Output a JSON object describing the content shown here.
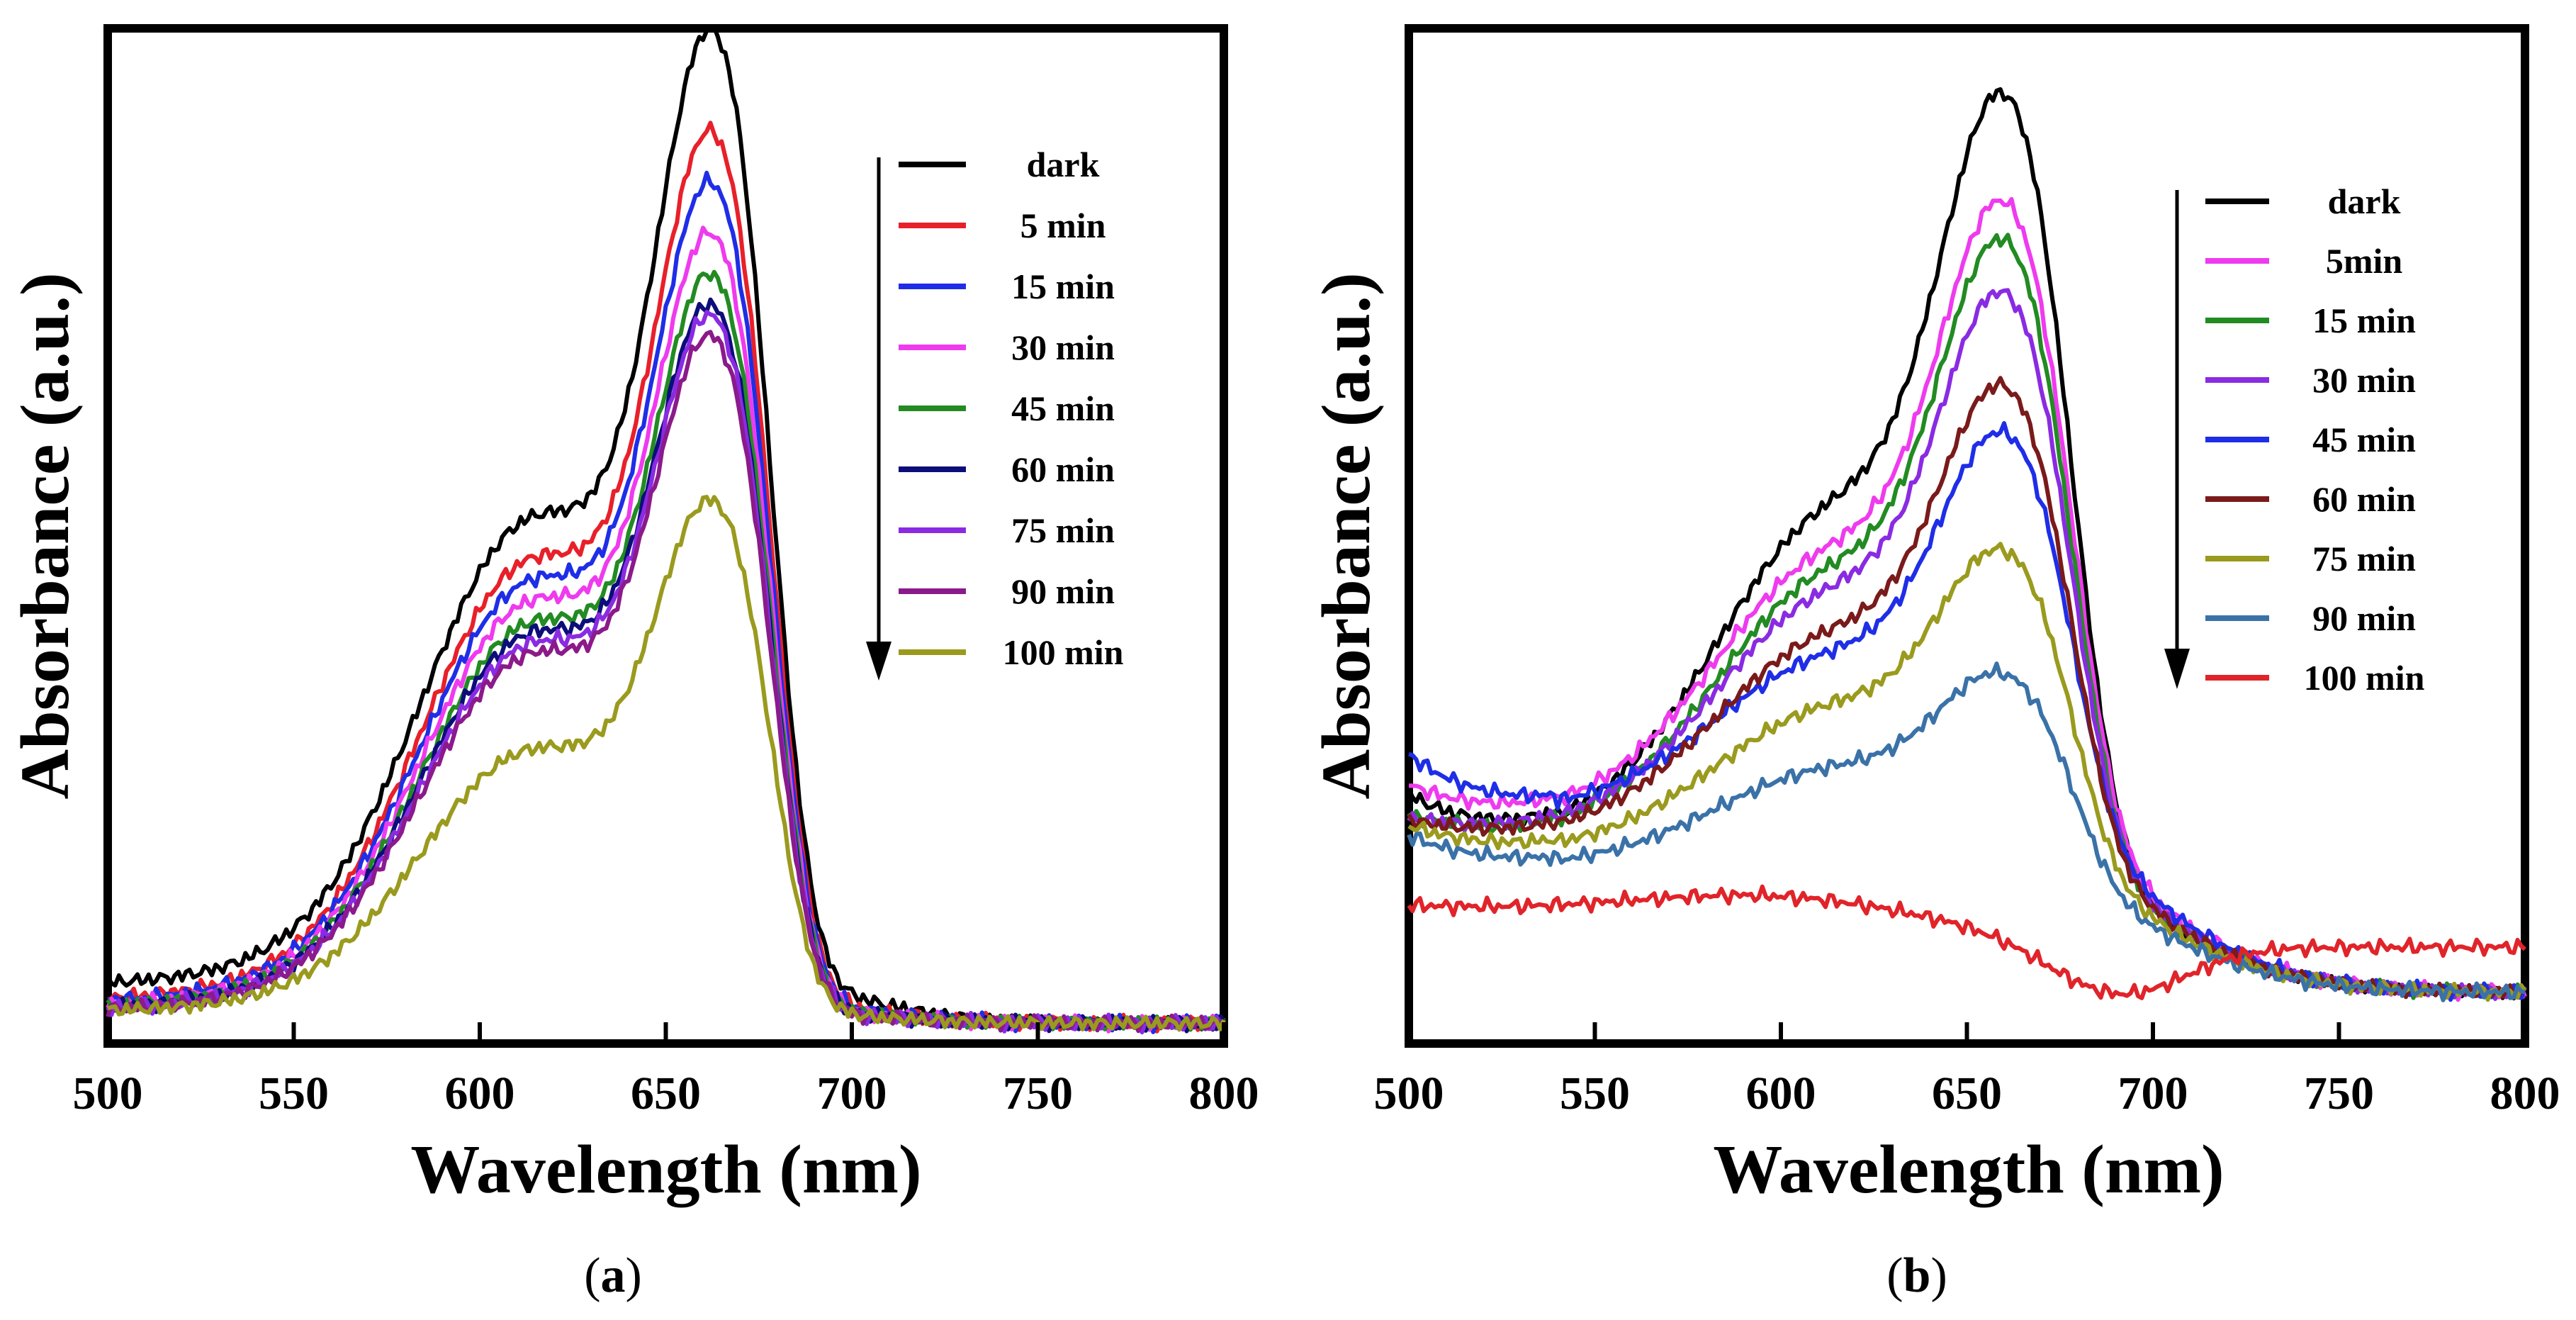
{
  "figure": {
    "panels": [
      {
        "caption_open": "(",
        "caption_letter": "a",
        "caption_close": ")"
      },
      {
        "caption_open": "(",
        "caption_letter": "b",
        "caption_close": ")"
      }
    ]
  },
  "chart_data": [
    {
      "type": "line",
      "title": "",
      "xlabel": "Wavelength (nm)",
      "ylabel": "Absorbance (a.u.)",
      "xlim": [
        500,
        800
      ],
      "ylim": [
        0,
        1.0
      ],
      "xticks": [
        "500",
        "550",
        "600",
        "650",
        "700",
        "750",
        "800"
      ],
      "legend_position": "top-right",
      "legend_arrow": "down",
      "series": [
        {
          "name": "dark",
          "color": "#000000",
          "base": 0.055,
          "tail": 0.02,
          "peak": 0.99,
          "sh": 0.5,
          "s560": 0.11
        },
        {
          "name": "5 min",
          "color": "#e8202a",
          "base": 0.04,
          "tail": 0.02,
          "peak": 0.89,
          "sh": 0.46,
          "s560": 0.095
        },
        {
          "name": "15 min",
          "color": "#1f2ee6",
          "base": 0.038,
          "tail": 0.02,
          "peak": 0.84,
          "sh": 0.44,
          "s560": 0.09
        },
        {
          "name": "30 min",
          "color": "#ee3bee",
          "base": 0.034,
          "tail": 0.02,
          "peak": 0.79,
          "sh": 0.42,
          "s560": 0.085
        },
        {
          "name": "45 min",
          "color": "#228b22",
          "base": 0.033,
          "tail": 0.02,
          "peak": 0.75,
          "sh": 0.4,
          "s560": 0.08
        },
        {
          "name": "60 min",
          "color": "#0d0d7a",
          "base": 0.032,
          "tail": 0.02,
          "peak": 0.72,
          "sh": 0.39,
          "s560": 0.078
        },
        {
          "name": "75 min",
          "color": "#8a2be2",
          "base": 0.031,
          "tail": 0.02,
          "peak": 0.71,
          "sh": 0.38,
          "s560": 0.076
        },
        {
          "name": "90 min",
          "color": "#8b1a8b",
          "base": 0.03,
          "tail": 0.02,
          "peak": 0.69,
          "sh": 0.37,
          "s560": 0.074
        },
        {
          "name": "100 min",
          "color": "#9a9a1e",
          "base": 0.03,
          "tail": 0.02,
          "peak": 0.53,
          "sh": 0.28,
          "s560": 0.06
        }
      ]
    },
    {
      "type": "line",
      "title": "",
      "xlabel": "Wavelength (nm)",
      "ylabel": "Absorbance (a.u.)",
      "xlim": [
        500,
        800
      ],
      "ylim": [
        0,
        1.0
      ],
      "xticks": [
        "500",
        "550",
        "600",
        "650",
        "700",
        "750",
        "800"
      ],
      "legend_position": "top-right",
      "legend_arrow": "down",
      "series": [
        {
          "name": "dark",
          "color": "#000000",
          "y500": 0.245,
          "trough": 0.205,
          "peak": 0.93,
          "sh": 0.52,
          "tail": 0.05
        },
        {
          "name": "5min",
          "color": "#ee3bee",
          "y500": 0.255,
          "trough": 0.225,
          "peak": 0.83,
          "sh": 0.48,
          "tail": 0.05
        },
        {
          "name": "15 min",
          "color": "#228b22",
          "y500": 0.225,
          "trough": 0.205,
          "peak": 0.79,
          "sh": 0.46,
          "tail": 0.05
        },
        {
          "name": "30 min",
          "color": "#8a2be2",
          "y500": 0.222,
          "trough": 0.21,
          "peak": 0.74,
          "sh": 0.44,
          "tail": 0.05
        },
        {
          "name": "45 min",
          "color": "#1f2ee6",
          "y500": 0.285,
          "trough": 0.23,
          "peak": 0.61,
          "sh": 0.38,
          "tail": 0.05
        },
        {
          "name": "60 min",
          "color": "#7a1a1a",
          "y500": 0.22,
          "trough": 0.205,
          "peak": 0.65,
          "sh": 0.4,
          "tail": 0.05
        },
        {
          "name": "75 min",
          "color": "#9a9a1e",
          "y500": 0.215,
          "trough": 0.19,
          "peak": 0.49,
          "sh": 0.33,
          "tail": 0.05
        },
        {
          "name": "90 min",
          "color": "#3a72a8",
          "y500": 0.205,
          "trough": 0.175,
          "peak": 0.37,
          "sh": 0.27,
          "tail": 0.05
        },
        {
          "name": "100 min",
          "color": "#e0242a",
          "y500": 0.135,
          "trough": 0.11,
          "peak": 0.115,
          "sh": 0.11,
          "tail": 0.05
        }
      ]
    }
  ]
}
